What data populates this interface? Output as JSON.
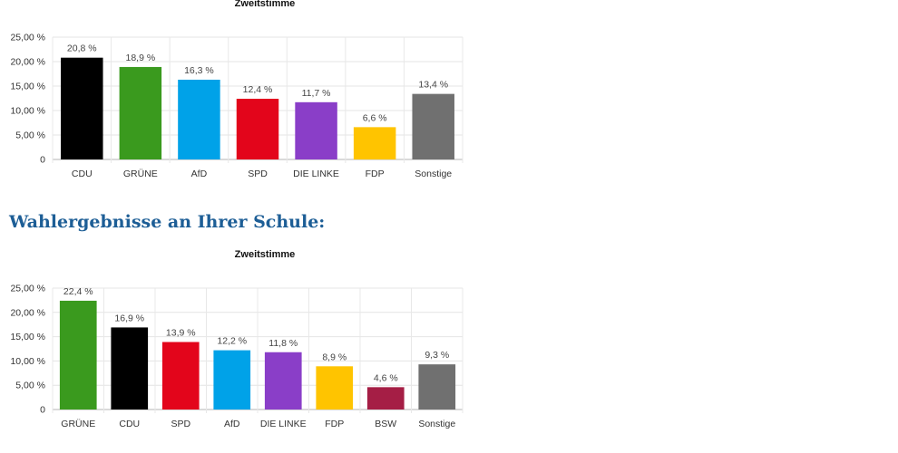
{
  "section_heading": "Wahlergebnisse an Ihrer Schule:",
  "chart_data": [
    {
      "type": "bar",
      "title": "Zweitstimme",
      "categories": [
        "CDU",
        "GRÜNE",
        "AfD",
        "SPD",
        "DIE LINKE",
        "FDP",
        "Sonstige"
      ],
      "values": [
        20.8,
        18.9,
        16.3,
        12.4,
        11.7,
        6.6,
        13.4
      ],
      "value_labels": [
        "20,8 %",
        "18,9 %",
        "16,3 %",
        "12,4 %",
        "11,7 %",
        "6,6 %",
        "13,4 %"
      ],
      "colors": [
        "#000000",
        "#3a9a1e",
        "#00a2e8",
        "#e3051b",
        "#8a3ec8",
        "#ffc400",
        "#707070"
      ],
      "yticks": [
        0,
        5,
        10,
        15,
        20,
        25
      ],
      "ytick_labels": [
        "0",
        "5,00 %",
        "10,00 %",
        "15,00 %",
        "20,00 %",
        "25,00 %"
      ],
      "ylim": [
        0,
        25
      ],
      "xlabel": "",
      "ylabel": "",
      "grid": true
    },
    {
      "type": "bar",
      "title": "Zweitstimme",
      "categories": [
        "GRÜNE",
        "CDU",
        "SPD",
        "AfD",
        "DIE LINKE",
        "FDP",
        "BSW",
        "Sonstige"
      ],
      "values": [
        22.4,
        16.9,
        13.9,
        12.2,
        11.8,
        8.9,
        4.6,
        9.3
      ],
      "value_labels": [
        "22,4 %",
        "16,9 %",
        "13,9 %",
        "12,2 %",
        "11,8 %",
        "8,9 %",
        "4,6 %",
        "9,3 %"
      ],
      "colors": [
        "#3a9a1e",
        "#000000",
        "#e3051b",
        "#00a2e8",
        "#8a3ec8",
        "#ffc400",
        "#a51e45",
        "#707070"
      ],
      "yticks": [
        0,
        5,
        10,
        15,
        20,
        25
      ],
      "ytick_labels": [
        "0",
        "5,00 %",
        "10,00 %",
        "15,00 %",
        "20,00 %",
        "25,00 %"
      ],
      "ylim": [
        0,
        25
      ],
      "xlabel": "",
      "ylabel": "",
      "grid": true
    }
  ]
}
